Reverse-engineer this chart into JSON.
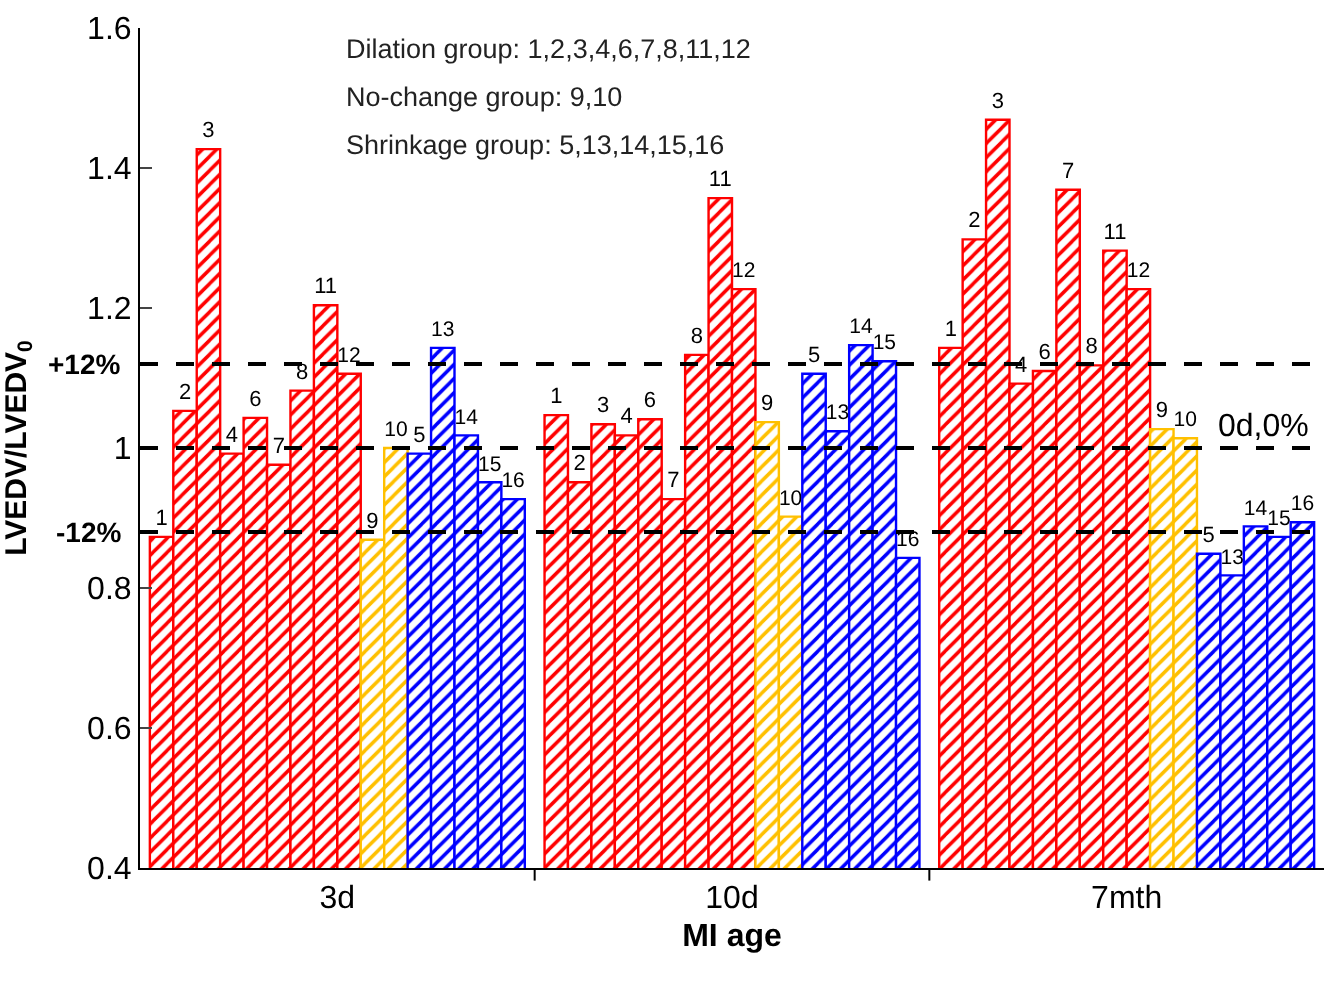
{
  "chart_data": {
    "type": "bar",
    "xlabel": "MI age",
    "ylabel": "LVEDV/LVEDV$_{0}$",
    "categories": [
      "3d",
      "10d",
      "7mth"
    ],
    "series": [
      {
        "name": "1",
        "color": "#ff0000",
        "values": [
          0.873,
          1.047,
          1.143
        ]
      },
      {
        "name": "2",
        "color": "#ff0000",
        "values": [
          1.053,
          0.951,
          1.298
        ]
      },
      {
        "name": "3",
        "color": "#ff0000",
        "values": [
          1.427,
          1.034,
          1.469
        ]
      },
      {
        "name": "4",
        "color": "#ff0000",
        "values": [
          0.992,
          1.018,
          1.092
        ]
      },
      {
        "name": "6",
        "color": "#ff0000",
        "values": [
          1.043,
          1.041,
          1.11
        ]
      },
      {
        "name": "7",
        "color": "#ff0000",
        "values": [
          0.976,
          0.927,
          1.369
        ]
      },
      {
        "name": "8",
        "color": "#ff0000",
        "values": [
          1.082,
          1.133,
          1.118
        ]
      },
      {
        "name": "11",
        "color": "#ff0000",
        "values": [
          1.204,
          1.357,
          1.282
        ]
      },
      {
        "name": "12",
        "color": "#ff0000",
        "values": [
          1.106,
          1.227,
          1.227
        ]
      },
      {
        "name": "9",
        "color": "#ffc000",
        "values": [
          0.869,
          1.037,
          1.027
        ]
      },
      {
        "name": "10",
        "color": "#ffc000",
        "values": [
          1.0,
          0.902,
          1.014
        ]
      },
      {
        "name": "5",
        "color": "#0000ff",
        "values": [
          0.992,
          1.106,
          0.849
        ]
      },
      {
        "name": "13",
        "color": "#0000ff",
        "values": [
          1.143,
          1.024,
          0.818
        ]
      },
      {
        "name": "14",
        "color": "#0000ff",
        "values": [
          1.018,
          1.147,
          0.888
        ]
      },
      {
        "name": "15",
        "color": "#0000ff",
        "values": [
          0.951,
          1.124,
          0.873
        ]
      },
      {
        "name": "16",
        "color": "#0000ff",
        "values": [
          0.927,
          0.843,
          0.894
        ]
      }
    ],
    "ylim": [
      0.4,
      1.6
    ],
    "yticks": [
      0.4,
      0.6,
      0.8,
      1,
      1.2,
      1.4,
      1.6
    ],
    "grid": false,
    "legend": false,
    "ref_lines": [
      {
        "axis": "y",
        "value": 1.12,
        "line_style": "dashed",
        "color": "#000000"
      },
      {
        "axis": "y",
        "value": 1,
        "line_style": "dashed",
        "color": "#000000"
      },
      {
        "axis": "y",
        "value": 0.88,
        "line_style": "dashed",
        "color": "#000000"
      }
    ],
    "annotations": [
      "Dilation group: 1,2,3,4,6,7,8,11,12",
      "No-change group: 9,10",
      "Shrinkage group: 5,13,14,15,16",
      "+12%",
      "0d,0%",
      "-12%"
    ]
  }
}
